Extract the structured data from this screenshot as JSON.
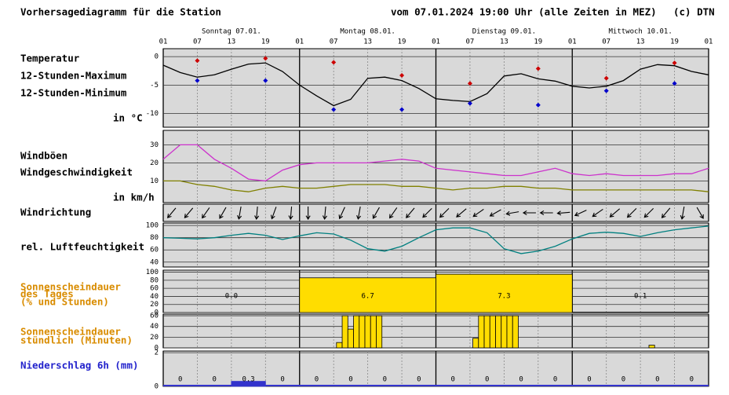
{
  "header": {
    "title": "Vorhersagediagramm für die Station",
    "run": "vom 07.01.2024 19:00 Uhr (alle Zeiten in MEZ)",
    "copyright": "(c) DTN"
  },
  "x_axis": {
    "xlim": [
      0,
      96
    ],
    "xticks": [
      {
        "value": 0,
        "label": "01"
      },
      {
        "value": 6,
        "label": "07"
      },
      {
        "value": 12,
        "label": "13"
      },
      {
        "value": 18,
        "label": "19"
      },
      {
        "value": 24,
        "label": "01"
      },
      {
        "value": 30,
        "label": "07"
      },
      {
        "value": 36,
        "label": "13"
      },
      {
        "value": 42,
        "label": "19"
      },
      {
        "value": 48,
        "label": "01"
      },
      {
        "value": 54,
        "label": "07"
      },
      {
        "value": 60,
        "label": "13"
      },
      {
        "value": 66,
        "label": "19"
      },
      {
        "value": 72,
        "label": "01"
      },
      {
        "value": 78,
        "label": "07"
      },
      {
        "value": 84,
        "label": "13"
      },
      {
        "value": 90,
        "label": "19"
      },
      {
        "value": 96,
        "label": "01"
      }
    ],
    "days": [
      "Sonntag 07.01.",
      "Montag 08.01.",
      "Dienstag 09.01.",
      "Mittwoch 10.01."
    ]
  },
  "chart_data": [
    {
      "type": "line",
      "title": "Temperatur",
      "ylabel": "in °C",
      "ylim": [
        -12.4,
        1.4
      ],
      "yticks": [
        0,
        -5,
        -10
      ],
      "x": [
        0,
        3,
        6,
        9,
        12,
        15,
        18,
        21,
        24,
        27,
        30,
        33,
        36,
        39,
        42,
        45,
        48,
        51,
        54,
        57,
        60,
        63,
        66,
        69,
        72,
        75,
        78,
        81,
        84,
        87,
        90,
        93,
        96
      ],
      "series": [
        {
          "color": "#000000",
          "values": [
            -1.5,
            -2.8,
            -3.6,
            -3.2,
            -2.2,
            -1.3,
            -1.1,
            -2.6,
            -5.0,
            -6.9,
            -8.6,
            -7.5,
            -3.8,
            -3.6,
            -4.2,
            -5.6,
            -7.4,
            -7.7,
            -7.9,
            -6.5,
            -3.4,
            -3.0,
            -3.9,
            -4.3,
            -5.2,
            -5.5,
            -5.2,
            -4.2,
            -2.2,
            -1.4,
            -1.6,
            -2.6,
            -3.2
          ]
        },
        {
          "name": "12-Stunden-Maximum",
          "color": "#cc0000",
          "style": "points",
          "x": [
            6,
            18,
            30,
            42,
            54,
            66,
            78,
            90
          ],
          "values": [
            -0.7,
            -0.3,
            -1,
            -3.3,
            -4.7,
            -2.1,
            -3.8,
            -1.1
          ]
        },
        {
          "name": "12-Stunden-Minimum",
          "color": "#0000cc",
          "style": "points",
          "x": [
            6,
            18,
            30,
            42,
            54,
            66,
            78,
            90
          ],
          "values": [
            -4.2,
            -4.2,
            -9.3,
            -9.3,
            -8.2,
            -8.5,
            -6,
            -4.7
          ]
        }
      ]
    },
    {
      "type": "line",
      "ylabel": "in km/h",
      "ylim": [
        -2,
        38
      ],
      "yticks": [
        10,
        20,
        30
      ],
      "x": [
        0,
        3,
        6,
        9,
        12,
        15,
        18,
        21,
        24,
        27,
        30,
        33,
        36,
        39,
        42,
        45,
        48,
        51,
        54,
        57,
        60,
        63,
        66,
        69,
        72,
        75,
        78,
        81,
        84,
        87,
        90,
        93,
        96
      ],
      "series": [
        {
          "name": "Windböen",
          "color": "#cc33cc",
          "values": [
            22,
            30,
            30,
            22,
            17,
            11,
            10,
            16,
            19,
            20,
            20,
            20,
            20,
            21,
            22,
            21,
            17,
            16,
            15,
            14,
            13,
            13,
            15,
            17,
            14,
            13,
            14,
            13,
            13,
            13,
            14,
            14,
            17
          ]
        },
        {
          "name": "Windgeschwindigkeit",
          "color": "#808000",
          "values": [
            10,
            10,
            8,
            7,
            5,
            4,
            6,
            7,
            6,
            6,
            7,
            8,
            8,
            8,
            7,
            7,
            6,
            5,
            6,
            6,
            7,
            7,
            6,
            6,
            5,
            5,
            5,
            5,
            5,
            5,
            5,
            5,
            4
          ]
        }
      ]
    },
    {
      "type": "arrows",
      "title": "Windrichtung",
      "color": "#000000",
      "x": [
        1.5,
        4.5,
        7.5,
        10.5,
        13.5,
        16.5,
        19.5,
        22.5,
        25.5,
        28.5,
        31.5,
        34.5,
        37.5,
        40.5,
        43.5,
        46.5,
        49.5,
        52.5,
        55.5,
        58.5,
        61.5,
        64.5,
        67.5,
        70.5,
        73.5,
        76.5,
        79.5,
        82.5,
        85.5,
        88.5,
        91.5,
        94.5
      ],
      "values": [
        40,
        40,
        35,
        30,
        10,
        5,
        20,
        5,
        0,
        5,
        25,
        10,
        30,
        35,
        40,
        45,
        45,
        50,
        55,
        60,
        80,
        90,
        90,
        85,
        65,
        55,
        50,
        45,
        45,
        40,
        10,
        330
      ]
    },
    {
      "type": "line",
      "ylim": [
        32,
        104
      ],
      "yticks": [
        100,
        80,
        60,
        40
      ],
      "x": [
        0,
        3,
        6,
        9,
        12,
        15,
        18,
        21,
        24,
        27,
        30,
        33,
        36,
        39,
        42,
        45,
        48,
        51,
        54,
        57,
        60,
        63,
        66,
        69,
        72,
        75,
        78,
        81,
        84,
        87,
        90,
        93,
        96
      ],
      "series": [
        {
          "name": "rel. Luftfeuchtigkeit",
          "color": "#008080",
          "values": [
            80,
            79,
            78,
            80,
            84,
            87,
            84,
            77,
            83,
            88,
            86,
            76,
            62,
            58,
            66,
            80,
            93,
            96,
            96,
            88,
            62,
            54,
            58,
            66,
            78,
            87,
            89,
            87,
            82,
            88,
            93,
            96,
            99
          ]
        }
      ]
    },
    {
      "type": "bar",
      "title": [
        "Sonnenscheindauer",
        "des Tages",
        "(% und Stunden)"
      ],
      "ylim": [
        0,
        105
      ],
      "yticks": [
        100,
        80,
        60,
        40,
        20,
        0
      ],
      "color": "#ffdd00",
      "x": [
        12,
        36,
        60,
        84
      ],
      "values": [
        0,
        86,
        95,
        1
      ],
      "sunshine_hours": [
        0,
        6.7,
        7.3,
        0.1
      ],
      "value_labels": [
        "0.0",
        "6.7",
        "7.3",
        "0.1"
      ]
    },
    {
      "type": "bar",
      "title": [
        "Sonnenscheindauer",
        "stündlich (Minuten)"
      ],
      "ylim": [
        0,
        63
      ],
      "yticks": [
        60,
        40,
        20,
        0
      ],
      "color": "#ffdd00",
      "x": [
        31,
        32,
        33,
        34,
        35,
        36,
        37,
        38,
        55,
        56,
        57,
        58,
        59,
        60,
        61,
        62,
        86
      ],
      "values": [
        10,
        60,
        35,
        60,
        60,
        60,
        60,
        60,
        18,
        60,
        60,
        60,
        60,
        60,
        60,
        60,
        5
      ]
    },
    {
      "type": "bar",
      "title": "Niederschlag 6h (mm)",
      "ylim": [
        0,
        2.1
      ],
      "yticks": [
        2,
        0
      ],
      "color": "#3333cc",
      "show_values": true,
      "x": [
        3,
        9,
        15,
        21,
        27,
        33,
        39,
        45,
        51,
        57,
        63,
        69,
        75,
        81,
        87,
        93
      ],
      "values": [
        0,
        0,
        0.3,
        0,
        0,
        0,
        0,
        0,
        0,
        0,
        0,
        0,
        0,
        0,
        0,
        0
      ]
    }
  ]
}
